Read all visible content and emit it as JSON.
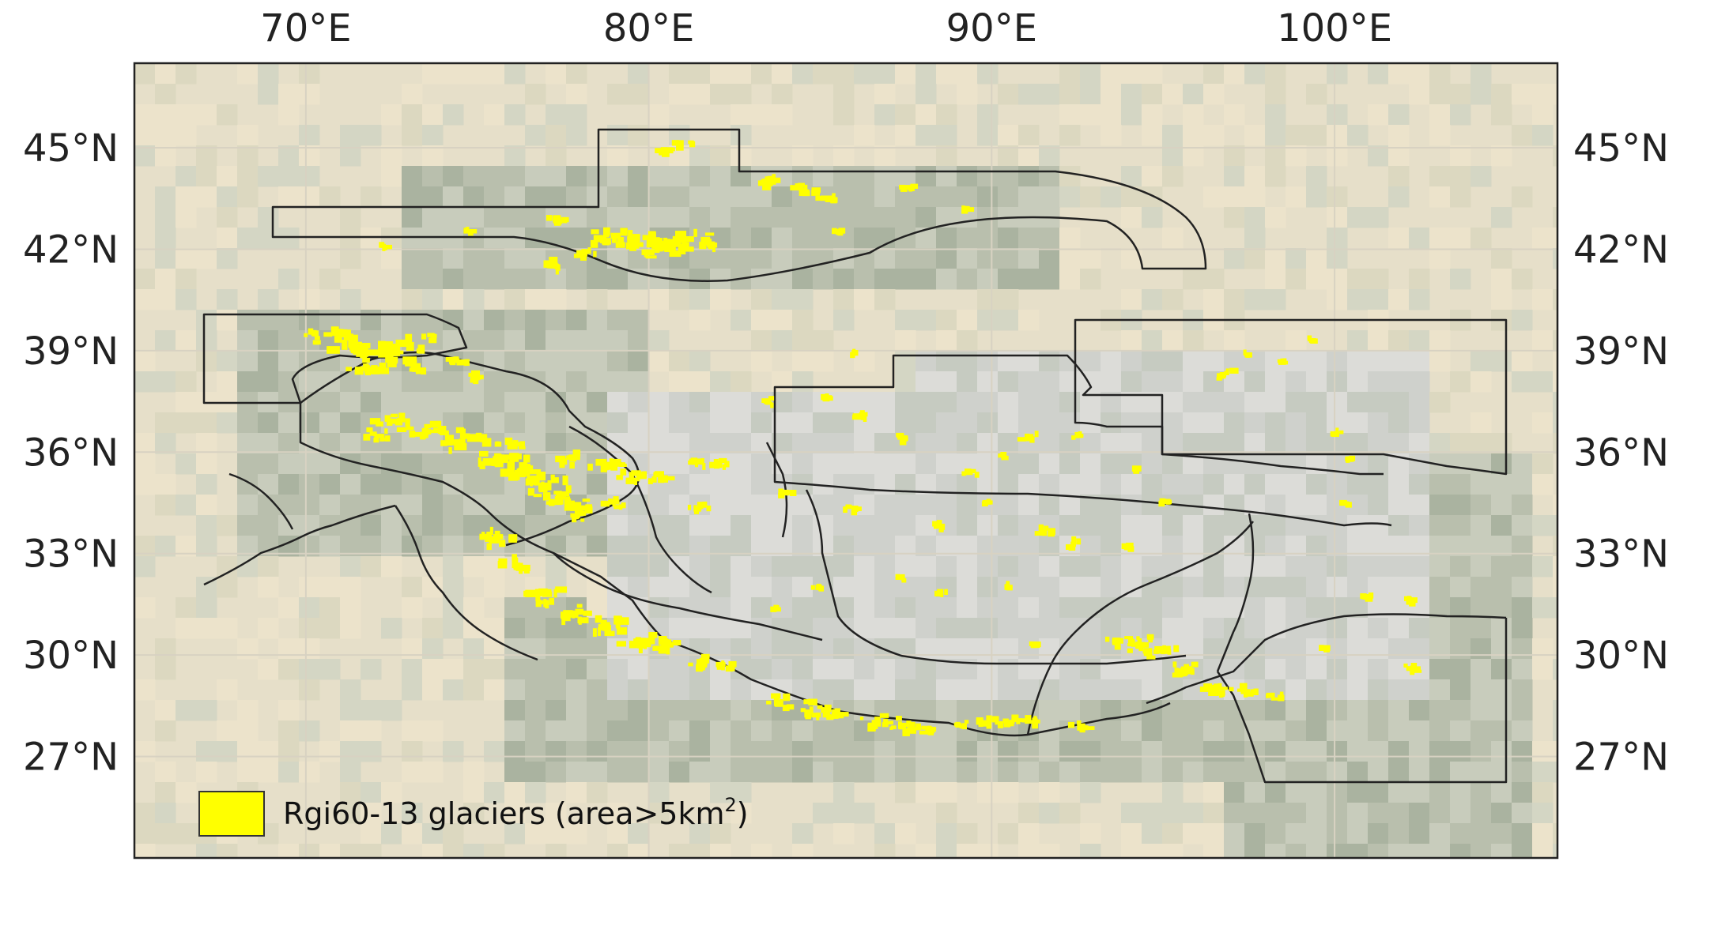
{
  "map": {
    "lon_ticks": [
      {
        "value": 70,
        "label": "70°E"
      },
      {
        "value": 80,
        "label": "80°E"
      },
      {
        "value": 90,
        "label": "90°E"
      },
      {
        "value": 100,
        "label": "100°E"
      }
    ],
    "lat_ticks": [
      {
        "value": 45,
        "label": "45°N"
      },
      {
        "value": 42,
        "label": "42°N"
      },
      {
        "value": 39,
        "label": "39°N"
      },
      {
        "value": 36,
        "label": "36°N"
      },
      {
        "value": 33,
        "label": "33°N"
      },
      {
        "value": 30,
        "label": "30°N"
      },
      {
        "value": 27,
        "label": "27°N"
      }
    ],
    "extent": {
      "lon_min": 65,
      "lon_max": 106.5,
      "lat_min": 24,
      "lat_max": 47.5
    },
    "legend": {
      "label_main": "Rgi60-13 glaciers (area>5km",
      "label_sup": "2",
      "label_end": ")",
      "swatch_color": "#ffff00"
    },
    "colors": {
      "glacier": "#ffff00",
      "boundary": "#222222",
      "graticule": "#d8d2c2",
      "background_desert": "#e6dfc9",
      "background_plateau": "#d5d6d2",
      "background_mountain": "#bfc4b4"
    },
    "glaciers": [
      [
        80.4,
        44.9,
        5
      ],
      [
        81.0,
        45.1,
        4
      ],
      [
        83.5,
        44.0,
        6
      ],
      [
        84.5,
        43.7,
        7
      ],
      [
        85.3,
        43.5,
        5
      ],
      [
        87.5,
        43.8,
        4
      ],
      [
        89.3,
        43.2,
        3
      ],
      [
        77.3,
        42.9,
        5
      ],
      [
        78.6,
        42.3,
        8
      ],
      [
        79.5,
        42.3,
        8
      ],
      [
        80.2,
        42.1,
        11
      ],
      [
        81.0,
        42.2,
        10
      ],
      [
        81.8,
        42.2,
        7
      ],
      [
        77.3,
        41.5,
        6
      ],
      [
        78.2,
        41.8,
        5
      ],
      [
        72.3,
        42.1,
        3
      ],
      [
        74.8,
        42.5,
        3
      ],
      [
        85.5,
        42.5,
        3
      ],
      [
        71.5,
        39.1,
        12
      ],
      [
        72.5,
        39.0,
        13
      ],
      [
        71.8,
        38.5,
        8
      ],
      [
        73.2,
        38.5,
        7
      ],
      [
        70.2,
        39.4,
        5
      ],
      [
        71.0,
        39.5,
        6
      ],
      [
        74.3,
        38.7,
        6
      ],
      [
        75.0,
        38.2,
        5
      ],
      [
        73.5,
        39.4,
        4
      ],
      [
        72.5,
        36.9,
        8
      ],
      [
        73.5,
        36.6,
        9
      ],
      [
        74.5,
        36.3,
        11
      ],
      [
        75.5,
        35.8,
        12
      ],
      [
        76.3,
        35.4,
        12
      ],
      [
        77.0,
        35.0,
        11
      ],
      [
        77.7,
        34.5,
        9
      ],
      [
        78.0,
        34.2,
        7
      ],
      [
        72.0,
        36.5,
        6
      ],
      [
        76.0,
        36.2,
        7
      ],
      [
        77.8,
        35.8,
        7
      ],
      [
        78.8,
        35.6,
        8
      ],
      [
        79.6,
        35.3,
        7
      ],
      [
        80.4,
        35.2,
        6
      ],
      [
        81.4,
        35.7,
        5
      ],
      [
        82.0,
        35.6,
        6
      ],
      [
        79.0,
        34.5,
        5
      ],
      [
        81.5,
        34.4,
        5
      ],
      [
        75.5,
        33.4,
        8
      ],
      [
        76.2,
        32.6,
        9
      ],
      [
        77.0,
        31.8,
        9
      ],
      [
        77.8,
        31.2,
        8
      ],
      [
        78.8,
        30.8,
        9
      ],
      [
        79.8,
        30.4,
        9
      ],
      [
        80.5,
        30.3,
        7
      ],
      [
        81.5,
        29.8,
        6
      ],
      [
        82.2,
        29.7,
        5
      ],
      [
        83.8,
        28.6,
        6
      ],
      [
        84.8,
        28.4,
        7
      ],
      [
        85.5,
        28.3,
        6
      ],
      [
        86.6,
        28.0,
        7
      ],
      [
        87.4,
        27.9,
        7
      ],
      [
        88.2,
        27.8,
        6
      ],
      [
        89.8,
        28.0,
        6
      ],
      [
        90.6,
        28.0,
        6
      ],
      [
        91.2,
        28.0,
        5
      ],
      [
        92.6,
        27.9,
        5
      ],
      [
        89.2,
        27.9,
        4
      ],
      [
        93.6,
        30.4,
        7
      ],
      [
        94.4,
        30.3,
        8
      ],
      [
        95.0,
        30.1,
        7
      ],
      [
        95.7,
        29.5,
        8
      ],
      [
        96.5,
        29.0,
        8
      ],
      [
        97.5,
        28.9,
        6
      ],
      [
        98.2,
        28.8,
        4
      ],
      [
        102.2,
        29.6,
        5
      ],
      [
        83.5,
        37.5,
        4
      ],
      [
        85.2,
        37.6,
        4
      ],
      [
        86.3,
        37.1,
        5
      ],
      [
        87.5,
        36.4,
        4
      ],
      [
        89.4,
        35.4,
        4
      ],
      [
        90.3,
        35.9,
        3
      ],
      [
        91.2,
        36.4,
        5
      ],
      [
        92.5,
        36.5,
        3
      ],
      [
        91.6,
        33.6,
        5
      ],
      [
        92.3,
        33.3,
        4
      ],
      [
        94.2,
        35.5,
        3
      ],
      [
        93.9,
        33.2,
        3
      ],
      [
        95.0,
        34.5,
        3
      ],
      [
        84.0,
        34.8,
        4
      ],
      [
        86.0,
        34.3,
        4
      ],
      [
        88.5,
        33.8,
        4
      ],
      [
        89.8,
        34.5,
        3
      ],
      [
        87.4,
        32.3,
        3
      ],
      [
        83.7,
        31.4,
        3
      ],
      [
        85.0,
        32.0,
        3
      ],
      [
        88.5,
        31.8,
        3
      ],
      [
        90.5,
        32.0,
        3
      ],
      [
        91.3,
        30.3,
        4
      ],
      [
        97.5,
        38.9,
        3
      ],
      [
        96.8,
        38.3,
        5
      ],
      [
        98.5,
        38.7,
        3
      ],
      [
        99.3,
        39.3,
        3
      ],
      [
        100.0,
        36.6,
        3
      ],
      [
        100.5,
        35.8,
        3
      ],
      [
        100.4,
        34.5,
        3
      ],
      [
        101.0,
        31.7,
        3
      ],
      [
        102.2,
        31.6,
        3
      ],
      [
        99.8,
        30.2,
        3
      ],
      [
        86.0,
        38.9,
        3
      ]
    ]
  }
}
